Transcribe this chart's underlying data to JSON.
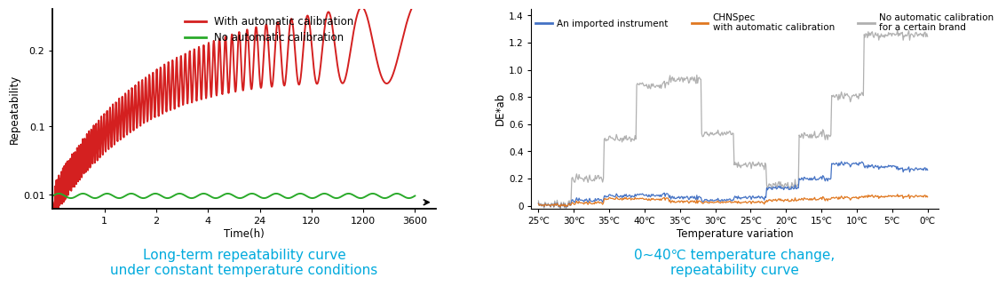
{
  "left_title": "Long-term repeatability curve\nunder constant temperature conditions",
  "left_ylabel": "Repeatability",
  "left_xlabel": "Time(h)",
  "left_yticks": [
    0.01,
    0.1,
    0.2
  ],
  "left_xtick_labels": [
    "1",
    "2",
    "4",
    "24",
    "120",
    "1200",
    "3600"
  ],
  "left_legend": [
    {
      "label": "With automatic calibration",
      "color": "#d42020"
    },
    {
      "label": "No automatic calibration",
      "color": "#2aaa2a"
    }
  ],
  "right_title": "0~40℃ temperature change,\nrepeatability curve",
  "right_ylabel": "DE*ab",
  "right_xlabel": "Temperature variation",
  "right_yticks": [
    0,
    0.2,
    0.4,
    0.6,
    0.8,
    1.0,
    1.2,
    1.4
  ],
  "right_xtick_labels": [
    "25℃",
    "30℃",
    "35℃",
    "40℃",
    "35℃",
    "30℃",
    "25℃",
    "20℃",
    "15℃",
    "10℃",
    "5℃",
    "0℃"
  ],
  "right_legend": [
    {
      "label": "An imported instrument",
      "color": "#4472c4"
    },
    {
      "label": "CHNSpec\nwith automatic calibration",
      "color": "#e07820"
    },
    {
      "label": "No automatic calibration\nfor a certain brand",
      "color": "#b0b0b0"
    }
  ],
  "title_color": "#00aadd",
  "title_fontsize": 11,
  "gray_segments": [
    0.01,
    0.2,
    0.49,
    0.89,
    0.93,
    0.53,
    0.3,
    0.15,
    0.52,
    0.81,
    1.26,
    1.26
  ],
  "blue_segments": [
    0.005,
    0.04,
    0.07,
    0.08,
    0.06,
    0.04,
    0.06,
    0.13,
    0.2,
    0.31,
    0.29,
    0.27
  ],
  "orange_segments": [
    0.005,
    0.02,
    0.05,
    0.05,
    0.03,
    0.025,
    0.025,
    0.04,
    0.05,
    0.06,
    0.07,
    0.07
  ]
}
